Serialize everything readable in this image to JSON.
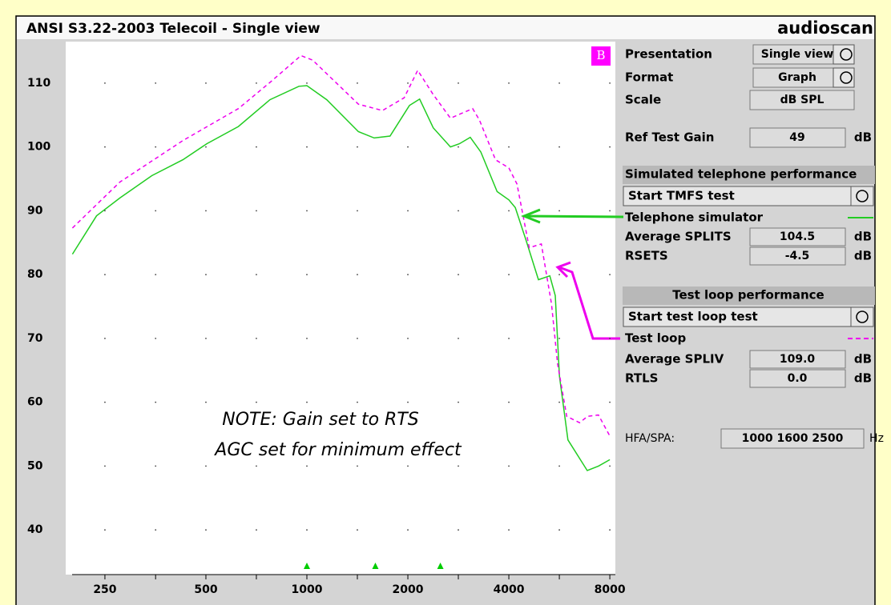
{
  "title": "ANSI S3.22-2003 Telecoil - Single view",
  "logo": "audioscan",
  "chart_data": {
    "type": "line",
    "badge": "B",
    "annotations": [
      "NOTE: Gain set to RTS",
      "AGC set for minimum effect"
    ],
    "xscale": "log",
    "xlim": [
      191,
      8310
    ],
    "xticks": [
      250,
      500,
      1000,
      2000,
      4000,
      8000
    ],
    "xminorticks": [
      354,
      707,
      1414,
      2828,
      5657
    ],
    "ylim": [
      33,
      116.5
    ],
    "yticks": [
      40,
      50,
      60,
      70,
      80,
      90,
      100,
      110
    ],
    "grid": "dots",
    "markers": [
      1000,
      1600,
      2500
    ],
    "marker_color": "#00cc00",
    "series": [
      {
        "name": "Telephone simulator",
        "color": "#22cc22",
        "dash": false,
        "x": [
          200,
          236,
          277,
          345,
          427,
          503,
          625,
          776,
          947,
          1000,
          1146,
          1424,
          1587,
          1770,
          2022,
          2168,
          2380,
          2680,
          2850,
          3070,
          3300,
          3690,
          4000,
          4180,
          4500,
          4900,
          5300,
          5500,
          5660,
          6000,
          6850,
          7400,
          8000
        ],
        "values": [
          83.2,
          89.2,
          92,
          95.5,
          98,
          100.5,
          103.2,
          107.4,
          109.5,
          109.6,
          107.4,
          102.4,
          101.4,
          101.7,
          106.5,
          107.5,
          103,
          100,
          100.5,
          101.5,
          99.2,
          93,
          91.7,
          90.5,
          85.4,
          79.2,
          79.8,
          76.7,
          64.1,
          54.1,
          49.3,
          50,
          51
        ]
      },
      {
        "name": "Test loop",
        "color": "#ee00ee",
        "dash": true,
        "x": [
          200,
          277,
          427,
          625,
          776,
          960,
          1040,
          1424,
          1680,
          1950,
          2140,
          2380,
          2680,
          3120,
          3270,
          3650,
          4000,
          4230,
          4600,
          5000,
          5360,
          5590,
          5950,
          6500,
          6870,
          7400,
          8000
        ],
        "values": [
          87.3,
          94.5,
          101,
          106,
          110.1,
          114.3,
          113.6,
          106.7,
          105.7,
          107.7,
          112,
          108.2,
          104.5,
          106,
          104.2,
          98,
          96.7,
          94.2,
          84.2,
          84.8,
          75.4,
          66,
          57.8,
          56.8,
          57.8,
          58,
          54.7
        ]
      }
    ]
  },
  "panel": {
    "presentation": {
      "label": "Presentation",
      "value": "Single view"
    },
    "format": {
      "label": "Format",
      "value": "Graph"
    },
    "scale": {
      "label": "Scale",
      "value": "dB SPL"
    },
    "ref_test_gain": {
      "label": "Ref Test Gain",
      "value": "49",
      "unit": "dB"
    },
    "telephone": {
      "header": "Simulated telephone performance",
      "button": "Start TMFS test",
      "average": {
        "label": "Average SPLITS",
        "value": "104.5",
        "unit": "dB"
      },
      "rse": {
        "label": "RSETS",
        "value": "-4.5",
        "unit": "dB"
      }
    },
    "loop": {
      "header": "Test loop performance",
      "button": "Start test loop test",
      "average": {
        "label": "Average SPLIV",
        "value": "109.0",
        "unit": "dB"
      },
      "rtl": {
        "label": "RTLS",
        "value": "0.0",
        "unit": "dB"
      }
    },
    "hfa_spa": {
      "label": "HFA/SPA:",
      "value": "1000 1600 2500",
      "unit": "Hz"
    }
  }
}
